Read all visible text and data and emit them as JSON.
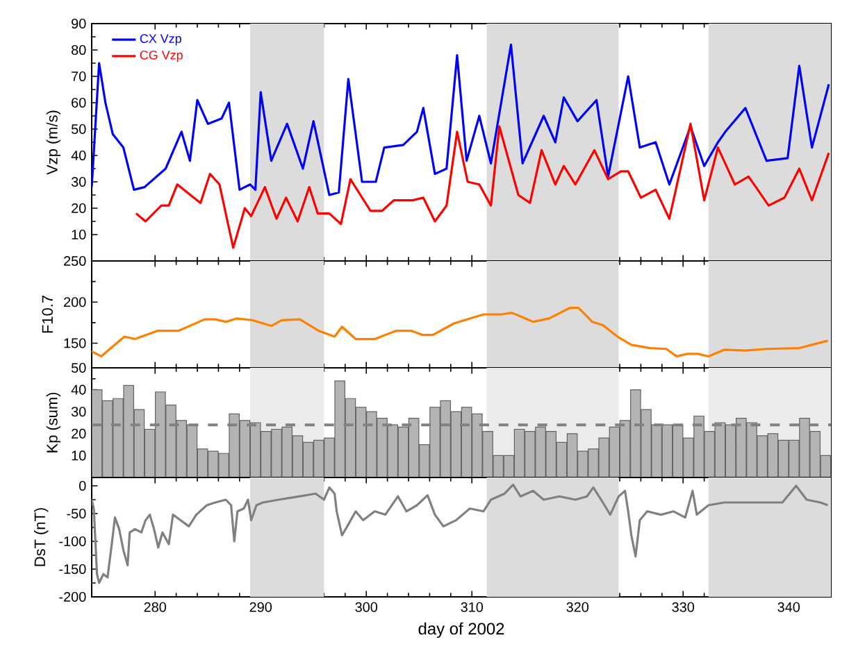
{
  "chart_data": [
    {
      "type": "line",
      "ylabel": "Vzp (m/s)",
      "xlim": [
        274,
        344
      ],
      "xticks": [
        280,
        290,
        300,
        310,
        320,
        330,
        340
      ],
      "ylim": [
        0,
        90
      ],
      "yticks": [
        10,
        20,
        30,
        40,
        50,
        60,
        70,
        80,
        90
      ],
      "tick_labels": "y",
      "legend": "top left",
      "bands": [
        {
          "axis": "x",
          "from": 289,
          "to": 296,
          "color": "#dcdcdc"
        },
        {
          "axis": "x",
          "from": 311.4,
          "to": 323.9,
          "color": "#dcdcdc"
        },
        {
          "axis": "x",
          "from": 332.4,
          "to": 344,
          "color": "#dcdcdc"
        }
      ],
      "series": [
        {
          "name": "CX Vzp",
          "color": "#0000ff",
          "x": [
            274,
            274.7,
            275.3,
            276,
            277,
            278,
            279,
            281,
            282.5,
            283.3,
            284,
            285,
            286.3,
            287,
            288,
            289,
            289.5,
            290,
            291,
            292.5,
            294,
            295,
            296.5,
            297.4,
            298.3,
            299.6,
            300.9,
            301.7,
            303.5,
            304.8,
            305.4,
            306.5,
            307.6,
            308.6,
            309.5,
            310.7,
            311.8,
            313.7,
            314.8,
            316.8,
            317.9,
            318.7,
            320,
            321.8,
            322.9,
            324.8,
            325.9,
            327.4,
            328.7,
            330.7,
            332,
            333.3,
            334,
            335.9,
            337.9,
            339.9,
            341,
            342.2,
            343.8
          ],
          "values": [
            28,
            75,
            60,
            48,
            43,
            27,
            28,
            35,
            49,
            38,
            61,
            52,
            54,
            60,
            27,
            29,
            27,
            64,
            38,
            52,
            35,
            53,
            25,
            26,
            69,
            30,
            30,
            43,
            44,
            49,
            58,
            33,
            35,
            78,
            38,
            55,
            37,
            82,
            37,
            55,
            45,
            62,
            53,
            61,
            32,
            70,
            43,
            45,
            29,
            51,
            36,
            45,
            49,
            58,
            38,
            39,
            74,
            43,
            67
          ]
        },
        {
          "name": "CG Vzp",
          "color": "#ff0000",
          "x": [
            278.2,
            279.1,
            280.6,
            281.3,
            282.1,
            284.3,
            285.2,
            286.1,
            287.4,
            288.5,
            289.1,
            290.4,
            291.5,
            292.4,
            293.5,
            294.6,
            295.4,
            296.5,
            297.6,
            298.5,
            300.4,
            301.5,
            302.6,
            304.4,
            305.4,
            306.5,
            307.6,
            308.6,
            309.6,
            310.7,
            311.8,
            312.6,
            314.4,
            315.5,
            316.6,
            317.9,
            318.7,
            319.8,
            321.6,
            322.9,
            324.1,
            324.8,
            326,
            327.4,
            328.7,
            330.7,
            332,
            333.3,
            334.9,
            336.2,
            338.1,
            339.6,
            341,
            342.2,
            343.8
          ],
          "values": [
            18,
            15,
            21,
            21,
            29,
            22,
            33,
            29,
            5,
            20,
            17,
            28,
            16,
            24,
            15,
            28,
            18,
            18,
            14,
            31,
            19,
            19,
            23,
            23,
            24,
            15,
            21,
            49,
            30,
            29,
            21,
            51,
            25,
            22,
            42,
            29,
            36,
            29,
            42,
            31,
            34,
            34,
            24,
            27,
            16,
            52,
            23,
            43,
            29,
            32,
            21,
            24,
            35,
            23,
            41
          ]
        }
      ]
    },
    {
      "type": "line",
      "ylabel": "F10.7",
      "xlim": [
        274,
        344
      ],
      "xticks": [
        280,
        290,
        300,
        310,
        320,
        330,
        340
      ],
      "ylim": [
        120,
        250
      ],
      "yticks": [
        150,
        200,
        250
      ],
      "tick_labels": "y",
      "bands": [
        {
          "axis": "x",
          "from": 289,
          "to": 296,
          "color": "#dcdcdc"
        },
        {
          "axis": "x",
          "from": 311.4,
          "to": 323.9,
          "color": "#dcdcdc"
        },
        {
          "axis": "x",
          "from": 332.4,
          "to": 344,
          "color": "#dcdcdc"
        }
      ],
      "color": "#ff8000",
      "x": [
        274,
        274.9,
        277.1,
        278.1,
        280.2,
        282.2,
        284.7,
        285.7,
        286.7,
        287.7,
        289.2,
        291,
        292,
        293.7,
        295.5,
        297,
        297.7,
        299,
        300.8,
        302.8,
        304.3,
        305.3,
        306.3,
        308.3,
        309.8,
        311.1,
        312.8,
        313.8,
        315.8,
        317.3,
        319.3,
        320.1,
        321.4,
        322.4,
        323.9,
        325.1,
        326.9,
        328.4,
        329.4,
        330.4,
        331.4,
        332.4,
        333.9,
        335.9,
        337.9,
        341,
        342.5,
        343.7
      ],
      "values": [
        140,
        134,
        158,
        155,
        165,
        165,
        179,
        179,
        176,
        180,
        178,
        171,
        178,
        179,
        165,
        158,
        170,
        155,
        155,
        165,
        165,
        160,
        160,
        174,
        180,
        185,
        185,
        187,
        176,
        180,
        193,
        193,
        176,
        172,
        157,
        148,
        144,
        143,
        134,
        137,
        137,
        134,
        142,
        141,
        143,
        144,
        149,
        153
      ]
    },
    {
      "type": "bar",
      "ylabel": "Kp (sum)",
      "xlim": [
        274,
        344
      ],
      "xticks": [
        280,
        290,
        300,
        310,
        320,
        330,
        340
      ],
      "ylim": [
        0,
        50
      ],
      "yticks": [
        10,
        20,
        30,
        40,
        50
      ],
      "tick_labels": "y",
      "color": "#b4b4b4",
      "bands": [
        {
          "axis": "x",
          "from": 289,
          "to": 296,
          "color": "#ebebeb"
        },
        {
          "axis": "x",
          "from": 311.4,
          "to": 323.9,
          "color": "#ebebeb"
        },
        {
          "axis": "x",
          "from": 332.4,
          "to": 344,
          "color": "#ebebeb"
        }
      ],
      "ref_lines": [
        {
          "axis": "y",
          "value": 24,
          "color": "#808080",
          "line_style": "dashed"
        }
      ],
      "x": [
        274.5,
        275.5,
        276.5,
        277.5,
        278.5,
        279.5,
        280.5,
        281.5,
        282.5,
        283.5,
        284.5,
        285.5,
        286.5,
        287.5,
        288.5,
        289.5,
        290.5,
        291.5,
        292.5,
        293.5,
        294.5,
        295.5,
        296.5,
        297.5,
        298.5,
        299.5,
        300.5,
        301.5,
        302.5,
        303.5,
        304.5,
        305.5,
        306.5,
        307.5,
        308.5,
        309.5,
        310.5,
        311.5,
        312.5,
        313.5,
        314.5,
        315.5,
        316.5,
        317.5,
        318.5,
        319.5,
        320.5,
        321.5,
        322.5,
        323.5,
        324.5,
        325.5,
        326.5,
        327.5,
        328.5,
        329.5,
        330.5,
        331.5,
        332.5,
        333.5,
        334.5,
        335.5,
        336.5,
        337.5,
        338.5,
        339.5,
        340.5,
        341.5,
        342.5,
        343.5
      ],
      "values": [
        40,
        35,
        36,
        42,
        31,
        22,
        39,
        33,
        26,
        24,
        13,
        12,
        11,
        29,
        26,
        25,
        21,
        22,
        23,
        19,
        16,
        17,
        18,
        44,
        36,
        32,
        30,
        27,
        24,
        23,
        27,
        15,
        32,
        35,
        30,
        32,
        29,
        21,
        10,
        10,
        22,
        21,
        23,
        21,
        16,
        20,
        12,
        13,
        18,
        23,
        26,
        40,
        31,
        24,
        24,
        24,
        18,
        28,
        21,
        25,
        24,
        27,
        25,
        19,
        20,
        17,
        17,
        27,
        21,
        10
      ]
    },
    {
      "type": "line",
      "ylabel": "DsT (nT)",
      "xlabel": "day of  2002",
      "xlim": [
        274,
        344
      ],
      "xticks": [
        280,
        290,
        300,
        310,
        320,
        330,
        340
      ],
      "ylim": [
        -200,
        15
      ],
      "yticks": [
        -200,
        -150,
        -100,
        -50,
        0
      ],
      "color": "#808080",
      "bands": [
        {
          "axis": "x",
          "from": 289,
          "to": 296,
          "color": "#dcdcdc"
        },
        {
          "axis": "x",
          "from": 311.4,
          "to": 323.9,
          "color": "#dcdcdc"
        },
        {
          "axis": "x",
          "from": 332.4,
          "to": 344,
          "color": "#dcdcdc"
        }
      ],
      "x": [
        274,
        274.2,
        274.5,
        274.7,
        275.1,
        275.5,
        275.9,
        276.2,
        276.6,
        277,
        277.4,
        277.6,
        278.1,
        278.7,
        279.1,
        279.5,
        279.9,
        280.3,
        280.7,
        281.3,
        281.7,
        282.4,
        283.2,
        283.9,
        284.9,
        285.7,
        286.7,
        287.2,
        287.5,
        287.8,
        288.4,
        288.8,
        289.1,
        289.6,
        290.2,
        291.7,
        293.7,
        295.2,
        296,
        296.5,
        297,
        297.2,
        297.7,
        298.2,
        299,
        299.7,
        300.8,
        301.8,
        303,
        303.8,
        304.8,
        305.8,
        306.5,
        307.3,
        308.5,
        309.8,
        311.1,
        311.8,
        313.1,
        313.9,
        314.6,
        315.8,
        316.8,
        318.3,
        319.8,
        320.9,
        321.5,
        322.4,
        323.1,
        323.9,
        324.5,
        324.8,
        325.1,
        325.5,
        325.9,
        326.6,
        327.9,
        329.1,
        330.2,
        330.9,
        331.3,
        332.4,
        333.9,
        335.9,
        337.9,
        339.4,
        340.7,
        341.7,
        343,
        343.7
      ],
      "values": [
        -25,
        -41,
        -159,
        -175,
        -159,
        -165,
        -105,
        -57,
        -78,
        -116,
        -143,
        -84,
        -78,
        -84,
        -62,
        -52,
        -78,
        -111,
        -84,
        -105,
        -52,
        -62,
        -73,
        -52,
        -35,
        -30,
        -25,
        -35,
        -100,
        -46,
        -41,
        -25,
        -62,
        -35,
        -30,
        -25,
        -19,
        -14,
        -25,
        -3,
        -14,
        -46,
        -89,
        -73,
        -46,
        -62,
        -46,
        -52,
        -19,
        -46,
        -35,
        -17,
        -52,
        -73,
        -62,
        -41,
        -46,
        -25,
        -14,
        2,
        -19,
        -9,
        -25,
        -19,
        -25,
        -19,
        -3,
        -30,
        -52,
        -19,
        -9,
        -46,
        -89,
        -127,
        -62,
        -46,
        -52,
        -46,
        -57,
        -9,
        -52,
        -35,
        -30,
        -30,
        -30,
        -30,
        0,
        -25,
        -30,
        -35
      ]
    }
  ]
}
